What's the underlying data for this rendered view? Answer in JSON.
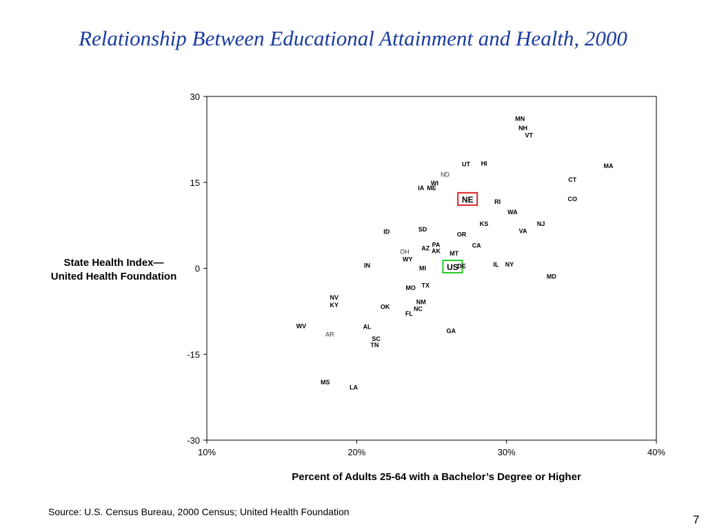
{
  "slide": {
    "title": "Relationship Between Educational Attainment and Health, 2000",
    "source": "Source:  U.S. Census Bureau, 2000 Census; United Health Foundation",
    "page_number": "7"
  },
  "chart_data": {
    "type": "scatter",
    "title": "Relationship Between Educational Attainment and Health, 2000",
    "xlabel": "Percent of Adults 25-64 with a Bachelor’s Degree or Higher",
    "ylabel_lines": [
      "State Health Index—",
      "United Health Foundation"
    ],
    "xlim": [
      10,
      40
    ],
    "ylim": [
      -30,
      30
    ],
    "x_ticks": [
      10,
      20,
      30,
      40
    ],
    "x_tick_labels": [
      "10%",
      "20%",
      "30%",
      "40%"
    ],
    "y_ticks": [
      30,
      15,
      0,
      -15,
      -30
    ],
    "y_tick_labels": [
      "30",
      "15",
      "0",
      "-15",
      "-30"
    ],
    "grid": false,
    "highlight_colors": {
      "NE": "#e02020",
      "US": "#22cc22"
    },
    "points": [
      {
        "label": "MN",
        "x": 30.9,
        "y": 26.2
      },
      {
        "label": "NH",
        "x": 31.1,
        "y": 24.6
      },
      {
        "label": "VT",
        "x": 31.5,
        "y": 23.3
      },
      {
        "label": "UT",
        "x": 27.3,
        "y": 18.3
      },
      {
        "label": "HI",
        "x": 28.5,
        "y": 18.4
      },
      {
        "label": "MA",
        "x": 36.8,
        "y": 18.0
      },
      {
        "label": "ND",
        "x": 25.9,
        "y": 16.5
      },
      {
        "label": "WI",
        "x": 25.2,
        "y": 15.0
      },
      {
        "label": "IA",
        "x": 24.3,
        "y": 14.1
      },
      {
        "label": "ME",
        "x": 25.0,
        "y": 14.1
      },
      {
        "label": "CT",
        "x": 34.4,
        "y": 15.6
      },
      {
        "label": "CO",
        "x": 34.4,
        "y": 12.2
      },
      {
        "label": "NE",
        "x": 27.4,
        "y": 12.1,
        "highlight": true
      },
      {
        "label": "RI",
        "x": 29.4,
        "y": 11.7
      },
      {
        "label": "WA",
        "x": 30.4,
        "y": 9.9
      },
      {
        "label": "KS",
        "x": 28.5,
        "y": 7.9
      },
      {
        "label": "NJ",
        "x": 32.3,
        "y": 7.9
      },
      {
        "label": "ID",
        "x": 22.0,
        "y": 6.5
      },
      {
        "label": "SD",
        "x": 24.4,
        "y": 6.9
      },
      {
        "label": "OR",
        "x": 27.0,
        "y": 6.0
      },
      {
        "label": "VA",
        "x": 31.1,
        "y": 6.6
      },
      {
        "label": "PA",
        "x": 25.3,
        "y": 4.2
      },
      {
        "label": "AZ",
        "x": 24.6,
        "y": 3.6
      },
      {
        "label": "AK",
        "x": 25.3,
        "y": 3.1
      },
      {
        "label": "CA",
        "x": 28.0,
        "y": 4.1
      },
      {
        "label": "OH",
        "x": 23.2,
        "y": 3.0
      },
      {
        "label": "MT",
        "x": 26.5,
        "y": 2.7
      },
      {
        "label": "WY",
        "x": 23.4,
        "y": 1.7
      },
      {
        "label": "IN",
        "x": 20.7,
        "y": 0.6
      },
      {
        "label": "MI",
        "x": 24.4,
        "y": 0.1
      },
      {
        "label": "US",
        "x": 26.4,
        "y": 0.3,
        "highlight": true
      },
      {
        "label": "DE",
        "x": 27.0,
        "y": 0.5
      },
      {
        "label": "IL",
        "x": 29.3,
        "y": 0.8
      },
      {
        "label": "NY",
        "x": 30.2,
        "y": 0.8
      },
      {
        "label": "MD",
        "x": 33.0,
        "y": -1.3
      },
      {
        "label": "MO",
        "x": 23.6,
        "y": -3.3
      },
      {
        "label": "TX",
        "x": 24.6,
        "y": -2.9
      },
      {
        "label": "NV",
        "x": 18.5,
        "y": -5.0
      },
      {
        "label": "KY",
        "x": 18.5,
        "y": -6.3
      },
      {
        "label": "NM",
        "x": 24.3,
        "y": -5.8
      },
      {
        "label": "OK",
        "x": 21.9,
        "y": -6.6
      },
      {
        "label": "NC",
        "x": 24.1,
        "y": -7.0
      },
      {
        "label": "FL",
        "x": 23.5,
        "y": -7.8
      },
      {
        "label": "WV",
        "x": 16.3,
        "y": -10.0
      },
      {
        "label": "AL",
        "x": 20.7,
        "y": -10.1
      },
      {
        "label": "GA",
        "x": 26.3,
        "y": -10.8
      },
      {
        "label": "AR",
        "x": 18.2,
        "y": -11.4
      },
      {
        "label": "SC",
        "x": 21.3,
        "y": -12.2
      },
      {
        "label": "TN",
        "x": 21.2,
        "y": -13.3
      },
      {
        "label": "MS",
        "x": 17.9,
        "y": -19.8
      },
      {
        "label": "LA",
        "x": 19.8,
        "y": -20.7
      }
    ]
  }
}
